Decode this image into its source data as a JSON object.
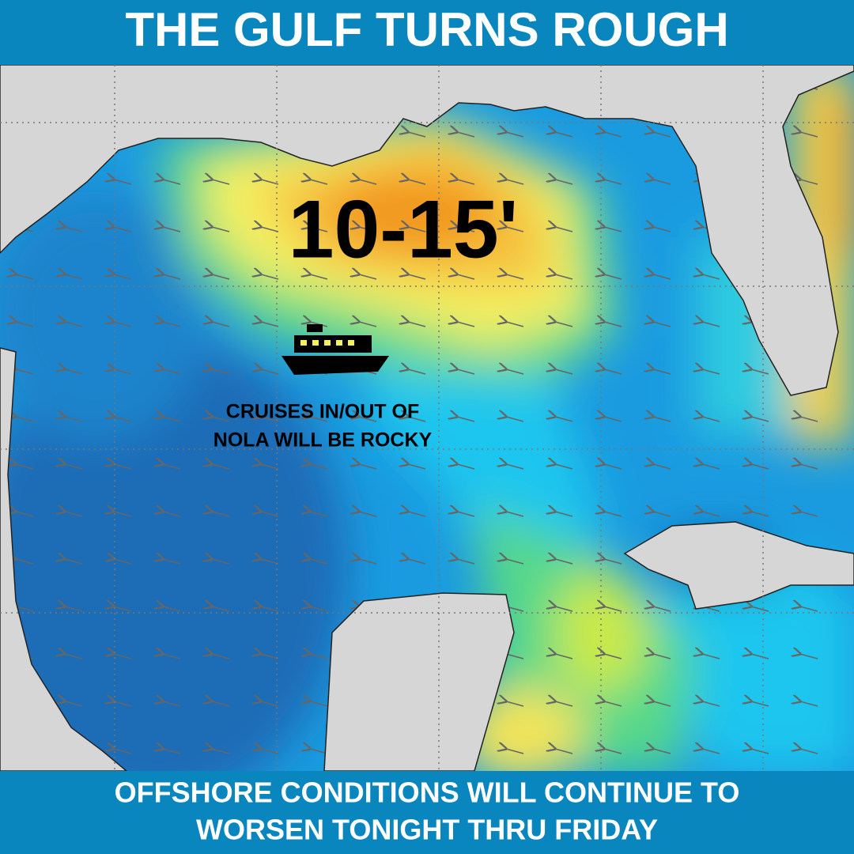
{
  "header": {
    "title": "THE GULF TURNS ROUGH"
  },
  "map": {
    "wave_height": "10-15'",
    "note": {
      "lines": [
        "CRUISES IN/OUT OF",
        "NOLA WILL BE ROCKY"
      ]
    }
  },
  "footer": {
    "lines": [
      "OFFSHORE CONDITIONS WILL CONTINUE TO",
      "WORSEN TONIGHT THRU FRIDAY"
    ]
  }
}
